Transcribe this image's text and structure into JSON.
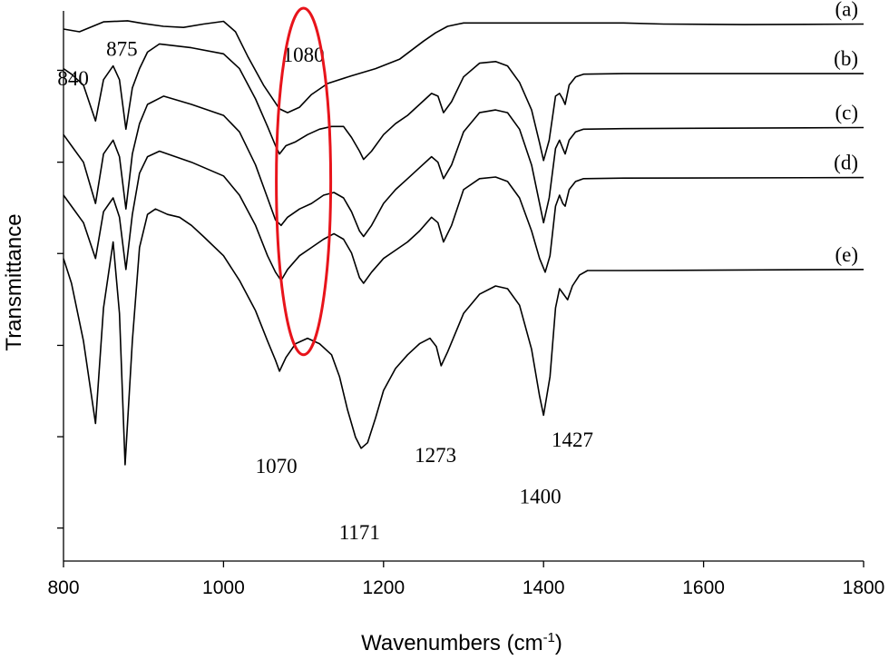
{
  "chart_data": {
    "type": "line",
    "title": "",
    "xlabel": "Wavenumbers (cm",
    "xlabel_sup": "-1",
    "xlabel_close": ")",
    "ylabel": "Transmittance",
    "xlim": [
      800,
      1800
    ],
    "ylim": [
      0,
      100
    ],
    "xticks": [
      800,
      1000,
      1200,
      1400,
      1600,
      1800
    ],
    "y_ticks_unlabeled": [
      6,
      22.6,
      39.2,
      55.9,
      72.5,
      89.2
    ],
    "grid": false,
    "legend": "none",
    "line_color": "#000000",
    "series": [
      {
        "name": "(a)",
        "x": [
          800,
          820,
          850,
          880,
          900,
          925,
          950,
          975,
          1000,
          1015,
          1030,
          1050,
          1070,
          1080,
          1095,
          1110,
          1130,
          1160,
          1190,
          1220,
          1250,
          1265,
          1280,
          1300,
          1350,
          1500,
          1550,
          1650,
          1800
        ],
        "y": [
          96.7,
          96.2,
          98.0,
          98.2,
          97.7,
          97.2,
          97.0,
          97.6,
          98.1,
          96.2,
          91.8,
          86.5,
          82.2,
          81.5,
          82.5,
          84.8,
          86.8,
          88.2,
          89.5,
          91.2,
          94.5,
          96.0,
          97.2,
          97.8,
          97.8,
          97.8,
          97.6,
          97.5,
          97.6
        ]
      },
      {
        "name": "(b)",
        "x": [
          800,
          810,
          825,
          840,
          850,
          862,
          870,
          878,
          886,
          895,
          905,
          920,
          960,
          1000,
          1020,
          1040,
          1055,
          1065,
          1070,
          1078,
          1090,
          1105,
          1120,
          1135,
          1150,
          1160,
          1170,
          1175,
          1185,
          1200,
          1215,
          1230,
          1245,
          1260,
          1268,
          1275,
          1285,
          1300,
          1320,
          1340,
          1355,
          1370,
          1385,
          1395,
          1400,
          1407,
          1415,
          1420,
          1424,
          1427,
          1432,
          1440,
          1450,
          1500,
          1800
        ],
        "y": [
          89.5,
          88.5,
          86.5,
          80.0,
          87.5,
          90.0,
          87.5,
          78.5,
          86.0,
          89.5,
          92.5,
          94.0,
          93.3,
          92.2,
          89.5,
          84.0,
          79.0,
          75.5,
          74.0,
          75.5,
          76.2,
          77.5,
          78.5,
          79.0,
          79.0,
          77.0,
          74.5,
          73.0,
          74.5,
          77.5,
          79.5,
          81.0,
          83.0,
          85.0,
          84.5,
          81.5,
          83.5,
          88.0,
          90.5,
          90.8,
          90.0,
          87.0,
          82.0,
          76.0,
          72.8,
          76.5,
          84.5,
          85.0,
          84.0,
          83.0,
          86.5,
          88.0,
          88.5,
          88.6,
          88.6
        ]
      },
      {
        "name": "(c)",
        "x": [
          800,
          810,
          825,
          840,
          850,
          862,
          870,
          878,
          886,
          895,
          905,
          925,
          960,
          1000,
          1020,
          1040,
          1055,
          1065,
          1072,
          1080,
          1095,
          1110,
          1125,
          1138,
          1150,
          1160,
          1170,
          1175,
          1185,
          1200,
          1215,
          1230,
          1245,
          1260,
          1268,
          1275,
          1285,
          1300,
          1320,
          1340,
          1355,
          1370,
          1385,
          1395,
          1400,
          1407,
          1415,
          1420,
          1424,
          1427,
          1432,
          1440,
          1450,
          1500,
          1800
        ],
        "y": [
          77.5,
          75.5,
          72.5,
          65.0,
          74.0,
          76.5,
          73.5,
          64.0,
          74.0,
          79.5,
          83.0,
          84.5,
          83.0,
          81.0,
          78.0,
          72.0,
          66.0,
          62.0,
          61.0,
          62.5,
          64.0,
          65.0,
          66.5,
          67.0,
          66.0,
          63.5,
          60.0,
          59.0,
          61.0,
          65.0,
          67.5,
          69.5,
          71.5,
          73.5,
          72.5,
          69.5,
          72.0,
          78.0,
          81.5,
          82.0,
          81.5,
          78.5,
          72.0,
          65.0,
          61.5,
          66.0,
          75.0,
          76.5,
          75.0,
          74.0,
          76.5,
          78.0,
          78.5,
          78.6,
          78.8
        ]
      },
      {
        "name": "(d)",
        "x": [
          800,
          810,
          825,
          840,
          850,
          862,
          870,
          878,
          886,
          895,
          905,
          920,
          960,
          1000,
          1020,
          1040,
          1055,
          1065,
          1072,
          1080,
          1095,
          1110,
          1125,
          1138,
          1150,
          1160,
          1170,
          1175,
          1185,
          1200,
          1215,
          1230,
          1245,
          1260,
          1268,
          1275,
          1285,
          1300,
          1320,
          1340,
          1355,
          1370,
          1385,
          1395,
          1402,
          1408,
          1415,
          1420,
          1424,
          1427,
          1432,
          1440,
          1450,
          1500,
          1800
        ],
        "y": [
          66.5,
          64.5,
          61.5,
          55.0,
          63.5,
          66.0,
          62.5,
          53.0,
          63.0,
          70.5,
          73.5,
          74.5,
          72.5,
          70.0,
          66.5,
          61.0,
          55.5,
          52.5,
          51.0,
          53.0,
          55.5,
          57.0,
          58.5,
          59.5,
          58.5,
          56.0,
          51.5,
          50.5,
          52.5,
          55.0,
          56.5,
          58.0,
          60.0,
          62.5,
          61.5,
          58.0,
          61.0,
          67.5,
          69.5,
          69.8,
          69.0,
          66.0,
          60.0,
          55.0,
          52.5,
          55.5,
          64.5,
          66.5,
          65.0,
          64.5,
          67.5,
          69.0,
          69.5,
          69.6,
          69.7
        ]
      },
      {
        "name": "(e)",
        "x": [
          800,
          810,
          825,
          840,
          850,
          862,
          870,
          877,
          886,
          895,
          905,
          915,
          930,
          945,
          960,
          975,
          1000,
          1020,
          1040,
          1055,
          1065,
          1070,
          1078,
          1090,
          1105,
          1120,
          1135,
          1145,
          1155,
          1165,
          1172,
          1180,
          1190,
          1200,
          1215,
          1230,
          1245,
          1258,
          1266,
          1272,
          1280,
          1300,
          1320,
          1340,
          1355,
          1370,
          1385,
          1395,
          1400,
          1408,
          1415,
          1420,
          1425,
          1430,
          1436,
          1445,
          1455,
          1500,
          1800
        ],
        "y": [
          55.0,
          50.5,
          40.0,
          25.0,
          46.0,
          58.0,
          45.0,
          17.5,
          40.0,
          57.0,
          63.0,
          64.0,
          63.0,
          62.5,
          61.0,
          59.0,
          55.5,
          51.0,
          45.5,
          40.0,
          36.5,
          34.5,
          37.0,
          39.5,
          40.5,
          39.5,
          37.5,
          33.5,
          27.5,
          22.5,
          20.5,
          21.5,
          26.0,
          31.0,
          35.0,
          37.5,
          39.5,
          40.5,
          39.0,
          35.5,
          38.0,
          45.0,
          48.5,
          50.0,
          49.5,
          46.5,
          38.5,
          30.0,
          26.5,
          33.5,
          46.0,
          49.5,
          48.5,
          47.5,
          50.0,
          52.0,
          52.8,
          52.8,
          53.0
        ]
      }
    ],
    "series_labels": [
      "(a)",
      "(b)",
      "(c)",
      "(d)",
      "(e)"
    ],
    "annotations": [
      {
        "text": "840",
        "x": 812,
        "y": 86.5
      },
      {
        "text": "875",
        "x": 873,
        "y": 91.8
      },
      {
        "text": "1080",
        "x": 1100,
        "y": 90.8
      },
      {
        "text": "1070",
        "x": 1066,
        "y": 16.0
      },
      {
        "text": "1171",
        "x": 1170,
        "y": 4.0
      },
      {
        "text": "1273",
        "x": 1265,
        "y": 18.0
      },
      {
        "text": "1400",
        "x": 1396,
        "y": 10.5
      },
      {
        "text": "1427",
        "x": 1436,
        "y": 20.8
      }
    ],
    "highlight_ellipse": {
      "color": "#e8141b",
      "center": [
        1100,
        69.0
      ],
      "rx_data": 34,
      "ry_data": 31.5
    }
  }
}
